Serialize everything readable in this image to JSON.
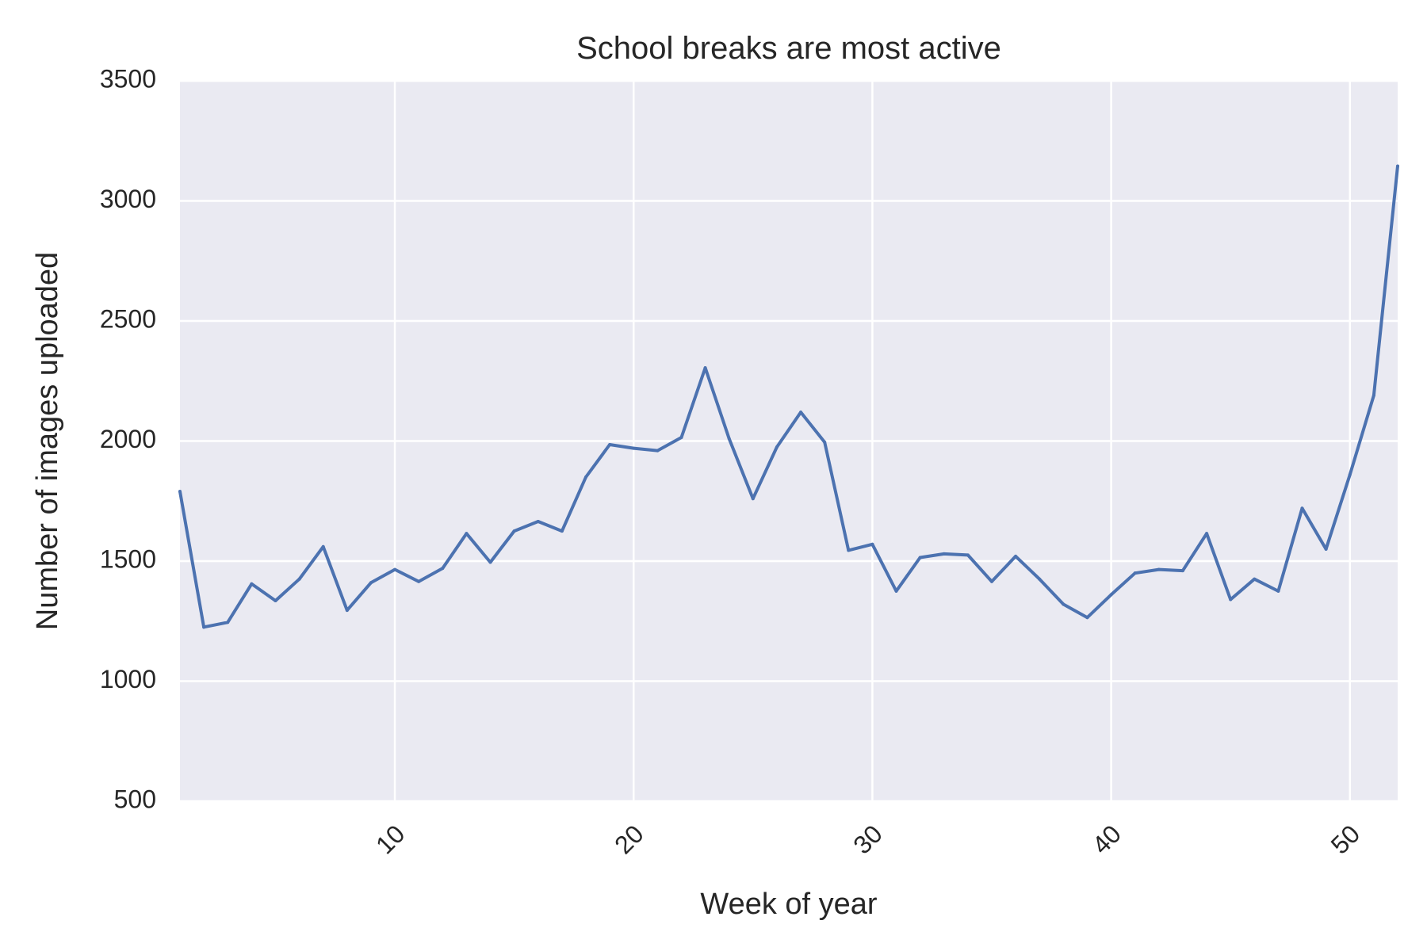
{
  "chart_data": {
    "type": "line",
    "title": "School breaks are most active",
    "xlabel": "Week of year",
    "ylabel": "Number of images uploaded",
    "xlim": [
      1,
      52
    ],
    "ylim": [
      500,
      3500
    ],
    "x_ticks": [
      10,
      20,
      30,
      40,
      50
    ],
    "y_ticks": [
      500,
      1000,
      1500,
      2000,
      2500,
      3000,
      3500
    ],
    "grid": true,
    "background_color": "#eaeaf2",
    "series": [
      {
        "color": "#4c72b0",
        "x": [
          1,
          2,
          3,
          4,
          5,
          6,
          7,
          8,
          9,
          10,
          11,
          12,
          13,
          14,
          15,
          16,
          17,
          18,
          19,
          20,
          21,
          22,
          23,
          24,
          25,
          26,
          27,
          28,
          29,
          30,
          31,
          32,
          33,
          34,
          35,
          36,
          37,
          38,
          39,
          40,
          41,
          42,
          43,
          44,
          45,
          46,
          47,
          48,
          49,
          50,
          51,
          52
        ],
        "values": [
          1790,
          1225,
          1245,
          1405,
          1335,
          1425,
          1560,
          1295,
          1410,
          1465,
          1415,
          1470,
          1615,
          1495,
          1625,
          1665,
          1625,
          1850,
          1985,
          1970,
          1960,
          2015,
          2305,
          2010,
          1760,
          1975,
          2120,
          1995,
          1545,
          1570,
          1375,
          1515,
          1530,
          1525,
          1415,
          1520,
          1425,
          1320,
          1265,
          1360,
          1450,
          1465,
          1460,
          1615,
          1340,
          1425,
          1375,
          1720,
          1550,
          1860,
          2190,
          3145
        ]
      }
    ]
  }
}
